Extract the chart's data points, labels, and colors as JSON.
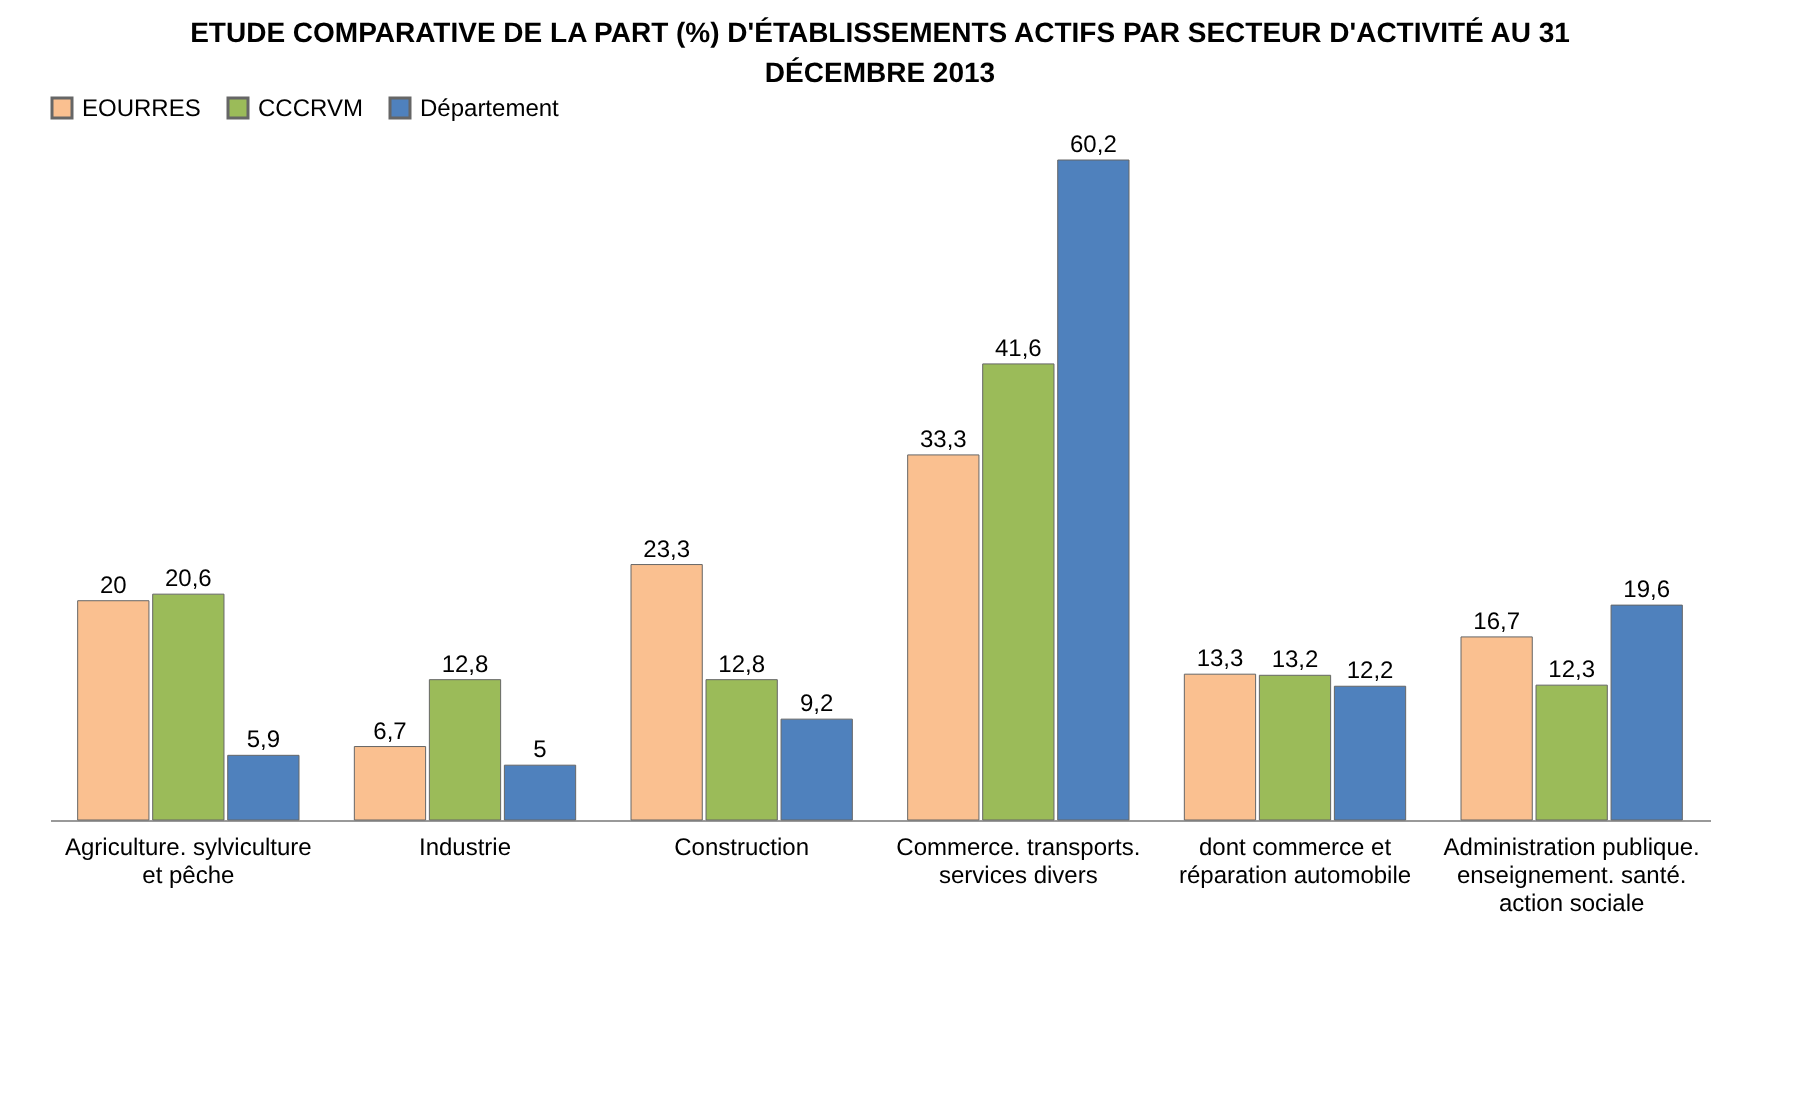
{
  "chart_data": {
    "type": "bar",
    "title": "ETUDE COMPARATIVE DE LA PART (%) D'ÉTABLISSEMENTS ACTIFS PAR SECTEUR D'ACTIVITÉ AU 31 DÉCEMBRE 2013",
    "categories": [
      "Agriculture. sylviculture et pêche",
      "Industrie",
      "Construction",
      "Commerce. transports. services divers",
      "dont commerce et réparation automobile",
      "Administration publique. enseignement. santé. action sociale"
    ],
    "series": [
      {
        "name": "EOURRES",
        "color": "#fac090",
        "values": [
          20,
          6.7,
          23.3,
          33.3,
          13.3,
          16.7
        ],
        "value_labels": [
          "20",
          "6,7",
          "23,3",
          "33,3",
          "13,3",
          "16,7"
        ]
      },
      {
        "name": "CCCRVM",
        "color": "#9bbb59",
        "values": [
          20.6,
          12.8,
          12.8,
          41.6,
          13.2,
          12.3
        ],
        "value_labels": [
          "20,6",
          "12,8",
          "12,8",
          "41,6",
          "13,2",
          "12,3"
        ]
      },
      {
        "name": "Département",
        "color": "#4f81bd",
        "values": [
          5.9,
          5,
          9.2,
          60.2,
          12.2,
          19.6
        ],
        "value_labels": [
          "5,9",
          "5",
          "9,2",
          "60,2",
          "12,2",
          "19,6"
        ]
      }
    ],
    "legend": "top"
  }
}
